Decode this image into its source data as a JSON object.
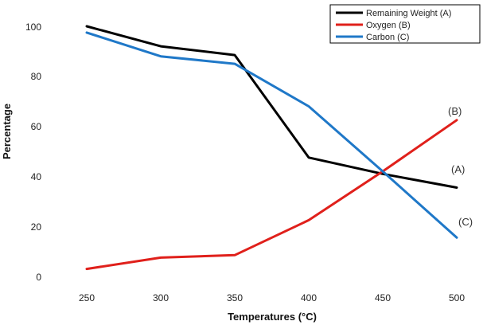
{
  "chart_data": {
    "type": "line",
    "x": [
      250,
      300,
      350,
      400,
      450,
      500
    ],
    "x_tick_labels": [
      "250",
      "300",
      "350",
      "400",
      "450",
      "500"
    ],
    "y_tick_labels": [
      "0",
      "20",
      "40",
      "60",
      "80",
      "100"
    ],
    "xlabel": "Temperatures (°C)",
    "ylabel": "Percentage",
    "xlim": [
      250,
      500
    ],
    "ylim": [
      0,
      100
    ],
    "grid": false,
    "legend_position": "top-right",
    "series": [
      {
        "name": "Remaining Weight (A)",
        "color": "#000000",
        "values": [
          100,
          92,
          88.5,
          47.5,
          41,
          35.5
        ],
        "annotation": "(A)"
      },
      {
        "name": "Oxygen (B)",
        "color": "#e0201b",
        "values": [
          3,
          7.5,
          8.5,
          22.5,
          42,
          62.5
        ],
        "annotation": "(B)"
      },
      {
        "name": "Carbon (C)",
        "color": "#1f78c8",
        "values": [
          97.5,
          88,
          85,
          68,
          42,
          15.5
        ],
        "annotation": "(C)"
      }
    ]
  }
}
